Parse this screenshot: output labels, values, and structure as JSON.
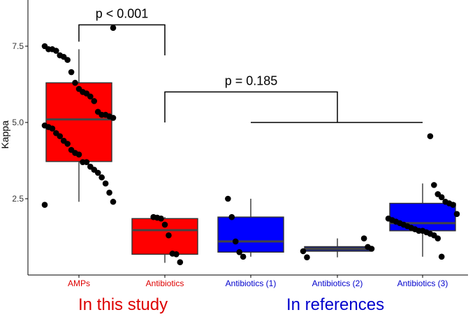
{
  "chart_data": {
    "type": "box",
    "ylabel": "Kappa",
    "ylim": [
      0,
      9
    ],
    "yticks": [
      2.5,
      5.0,
      7.5
    ],
    "grid": false,
    "categories": [
      {
        "label": "AMPs",
        "color": "#dd0000",
        "fill": "#ff0000",
        "box": {
          "q1": 3.72,
          "median": 5.1,
          "q3": 6.3,
          "whisker_low": 2.4,
          "whisker_high": 7.4
        },
        "points": [
          2.3,
          2.4,
          2.7,
          3.0,
          3.2,
          3.35,
          3.45,
          3.55,
          3.7,
          3.7,
          3.95,
          4.0,
          4.1,
          4.3,
          4.4,
          4.55,
          4.65,
          4.8,
          4.85,
          4.9,
          5.15,
          5.2,
          5.25,
          5.25,
          5.35,
          5.7,
          5.85,
          5.95,
          6.0,
          6.1,
          6.3,
          6.65,
          7.05,
          7.15,
          7.2,
          7.35,
          7.4,
          7.4,
          7.5,
          8.1
        ]
      },
      {
        "label": "Antibiotics",
        "color": "#dd0000",
        "fill": "#ff0000",
        "box": {
          "q1": 0.68,
          "median": 1.47,
          "q3": 1.85,
          "whisker_low": 0.4,
          "whisker_high": 1.9
        },
        "points": [
          0.42,
          0.68,
          0.7,
          1.3,
          1.65,
          1.85,
          1.88,
          1.9
        ]
      },
      {
        "label": "Antibiotics (1)",
        "color": "#0000cc",
        "fill": "#0000ff",
        "box": {
          "q1": 0.75,
          "median": 1.1,
          "q3": 1.9,
          "whisker_low": 0.6,
          "whisker_high": 2.5
        },
        "points": [
          0.6,
          0.75,
          1.1,
          1.9,
          2.5
        ]
      },
      {
        "label": "Antibiotics (2)",
        "color": "#0000cc",
        "fill": "#1a237e",
        "box": {
          "q1": 0.78,
          "median": 0.86,
          "q3": 0.93,
          "whisker_low": 0.58,
          "whisker_high": 1.2
        },
        "points": [
          0.58,
          0.78,
          0.86,
          0.92,
          1.2
        ]
      },
      {
        "label": "Antibiotics (3)",
        "color": "#0000cc",
        "fill": "#0000ff",
        "box": {
          "q1": 1.45,
          "median": 1.7,
          "q3": 2.35,
          "whisker_low": 0.6,
          "whisker_high": 3.0
        },
        "points": [
          0.6,
          1.2,
          1.3,
          1.35,
          1.4,
          1.45,
          1.45,
          1.5,
          1.55,
          1.6,
          1.65,
          1.7,
          1.75,
          1.8,
          1.85,
          2.0,
          2.3,
          2.35,
          2.4,
          2.55,
          2.65,
          2.95,
          4.55
        ]
      }
    ],
    "annotations": [
      {
        "text": "p < 0.001",
        "from": "AMPs",
        "to": "Antibiotics",
        "y": 8.2
      },
      {
        "text": "p = 0.185",
        "from": "Antibiotics",
        "to": "Antibiotics (1)-(3)",
        "y": 6.0
      }
    ],
    "group_labels": [
      {
        "text": "In this study",
        "color": "#dd0000"
      },
      {
        "text": "In references",
        "color": "#0000cc"
      }
    ]
  }
}
